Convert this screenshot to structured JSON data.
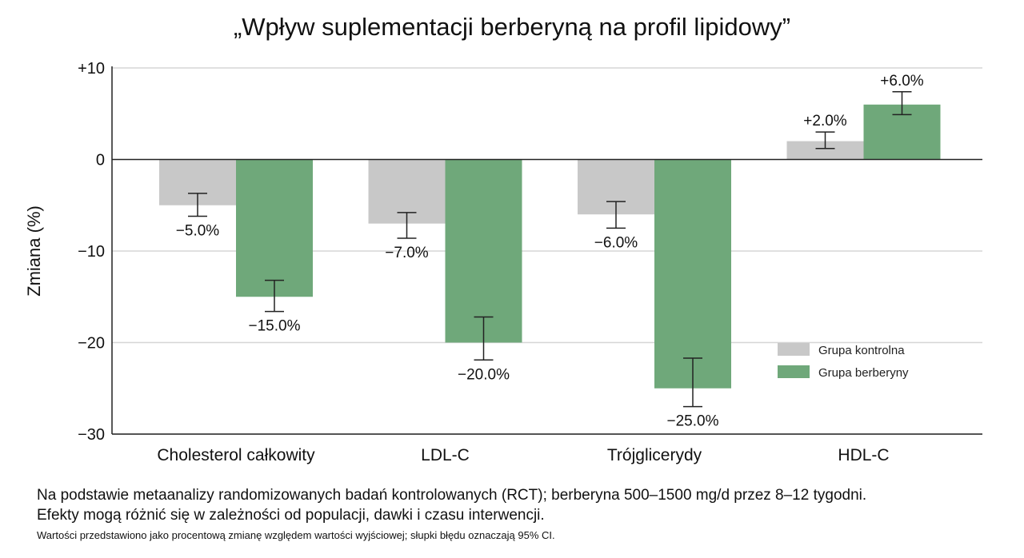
{
  "chart_data": {
    "type": "bar",
    "title": "„Wpływ suplementacji berberyną na profil lipidowy”",
    "ylabel": "Zmiana (%)",
    "xlabel": "",
    "ylim": [
      -30,
      10
    ],
    "yticks": [
      10,
      0,
      -10,
      -20,
      -30
    ],
    "ytick_labels": [
      "+10",
      "0",
      "−10",
      "−20",
      "−30"
    ],
    "grid": "horizontal",
    "legend_position": "lower-right",
    "categories": [
      "Cholesterol całkowity",
      "LDL-C",
      "Trójglicerydy",
      "HDL-C"
    ],
    "series": [
      {
        "name": "Grupa kontrolna",
        "color": "#c8c8c8",
        "values": [
          -5.0,
          -7.0,
          -6.0,
          2.0
        ],
        "error_low": [
          -6.2,
          -8.6,
          -7.5,
          1.2
        ],
        "error_high": [
          -3.7,
          -5.8,
          -4.6,
          3.0
        ],
        "labels": [
          "−5.0%",
          "−7.0%",
          "−6.0%",
          "+2.0%"
        ]
      },
      {
        "name": "Grupa berberyny",
        "color": "#6fa87a",
        "values": [
          -15.0,
          -20.0,
          -25.0,
          6.0
        ],
        "error_low": [
          -16.6,
          -21.9,
          -27.0,
          4.9
        ],
        "error_high": [
          -13.2,
          -17.2,
          -21.7,
          7.4
        ],
        "labels": [
          "−15.0%",
          "−20.0%",
          "−25.0%",
          "+6.0%"
        ]
      }
    ]
  },
  "notes": {
    "line1": "Na podstawie metaanalizy randomizowanych badań kontrolowanych (RCT); berberyna 500–1500 mg/d przez 8–12 tygodni.",
    "line2": "Efekty mogą różnić się w zależności od populacji, dawki i czasu interwencji.",
    "line3": "Wartości przedstawiono jako procentową zmianę względem wartości wyjściowej; słupki błędu oznaczają 95% CI."
  }
}
